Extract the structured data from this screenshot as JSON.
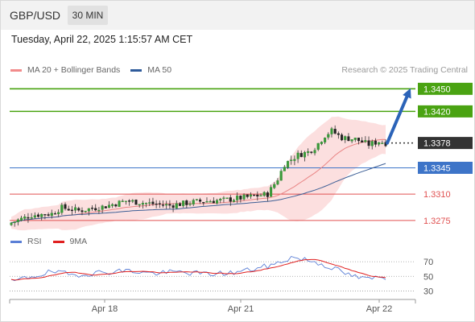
{
  "header": {
    "pair": "GBP/USD",
    "timeframe": "30 MIN"
  },
  "timestamp": "Tuesday, April 22, 2025 1:15:57 AM CET",
  "legend": {
    "ma20_label": "MA 20 + Bollinger Bands",
    "ma20_color": "#f28b8b",
    "ma50_label": "MA 50",
    "ma50_color": "#2f5b9b"
  },
  "research": "Research © 2025 Trading Central",
  "rsi_legend": {
    "rsi_label": "RSI",
    "rsi_color": "#5b7fd6",
    "ma9_label": "9MA",
    "ma9_color": "#e02020"
  },
  "chart_data": {
    "type": "candlestick",
    "price_ylim": [
      1.3262,
      1.346
    ],
    "x_ticks": [
      "Apr 18",
      "Apr 21",
      "Apr 22"
    ],
    "levels": [
      {
        "value": 1.345,
        "label": "1.3450",
        "kind": "resistance",
        "color": "#4aa312"
      },
      {
        "value": 1.342,
        "label": "1.3420",
        "kind": "resistance",
        "color": "#4aa312"
      },
      {
        "value": 1.3378,
        "label": "1.3378",
        "kind": "last",
        "color": "#333333"
      },
      {
        "value": 1.3345,
        "label": "1.3345",
        "kind": "pivot",
        "color": "#3d74c8"
      },
      {
        "value": 1.331,
        "label": "1.3310",
        "kind": "support",
        "color": "#e05050"
      },
      {
        "value": 1.3275,
        "label": "1.3275",
        "kind": "support",
        "color": "#e05050"
      }
    ],
    "rsi_ticks": [
      70,
      50,
      30
    ]
  }
}
